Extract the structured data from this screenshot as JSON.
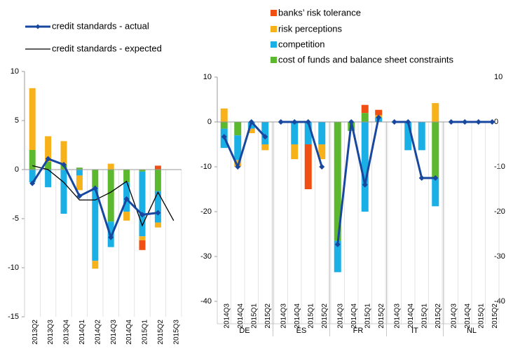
{
  "colors": {
    "banks_risk_tolerance": "#f04e13",
    "risk_perceptions": "#f7b11a",
    "competition": "#1ab0e6",
    "cost_of_funds": "#5cb82e",
    "actual_line": "#17479e",
    "expected_line": "#000000",
    "axis": "#999999",
    "text": "#000000"
  },
  "legend_left": [
    {
      "label": "credit standards - actual",
      "key": "actual"
    },
    {
      "label": "credit standards - expected",
      "key": "expected"
    }
  ],
  "legend_right": [
    {
      "label": "banks’ risk tolerance",
      "key": "banks_risk_tolerance"
    },
    {
      "label": "risk perceptions",
      "key": "risk_perceptions"
    },
    {
      "label": "competition",
      "key": "competition"
    },
    {
      "label": "cost of funds and balance sheet constraints",
      "key": "cost_of_funds"
    }
  ],
  "chart_data": [
    {
      "type": "bar",
      "stacked": true,
      "ylim": [
        -15,
        10
      ],
      "yticks": [
        10,
        5,
        0,
        -5,
        -10,
        -15
      ],
      "categories": [
        "2013Q2",
        "2013Q3",
        "2013Q4",
        "2014Q1",
        "2014Q2",
        "2014Q3",
        "2014Q4",
        "2015Q1",
        "2015Q2",
        "2015Q3"
      ],
      "series": [
        {
          "name": "cost of funds and balance sheet constraints",
          "key": "cost_of_funds",
          "values": [
            2.0,
            0.8,
            0.5,
            0.2,
            -1.8,
            -5.3,
            -1.3,
            -0.2,
            -2.2,
            null
          ]
        },
        {
          "name": "competition",
          "key": "competition",
          "values": [
            -1.3,
            -1.8,
            -4.5,
            -0.6,
            -7.5,
            -2.6,
            -3.0,
            -6.6,
            -3.2,
            null
          ]
        },
        {
          "name": "risk perceptions",
          "key": "risk_perceptions",
          "values": [
            6.3,
            2.6,
            2.4,
            -1.5,
            -0.8,
            0.6,
            -0.9,
            -0.4,
            -0.5,
            null
          ]
        },
        {
          "name": "banks’ risk tolerance",
          "key": "banks_risk_tolerance",
          "values": [
            0.0,
            0.0,
            0.0,
            0.0,
            0.0,
            0.0,
            0.0,
            -1.0,
            0.4,
            null
          ]
        }
      ],
      "lines": [
        {
          "name": "credit standards - actual",
          "key": "actual",
          "values": [
            -1.4,
            1.1,
            0.5,
            -2.7,
            -1.9,
            -6.9,
            -3.0,
            -4.6,
            -4.4,
            null
          ]
        },
        {
          "name": "credit standards - expected",
          "key": "expected",
          "values": [
            0.4,
            0.0,
            -1.3,
            -3.1,
            -3.1,
            -2.3,
            -1.2,
            -5.7,
            -2.3,
            -5.2
          ]
        }
      ]
    },
    {
      "type": "bar",
      "stacked": true,
      "ylim": [
        -40,
        10
      ],
      "yticks": [
        10,
        0,
        -10,
        -20,
        -30,
        -40
      ],
      "groups": [
        {
          "label": "DE",
          "quarters": [
            "2014Q3",
            "2014Q4",
            "2015Q1",
            "2015Q2"
          ],
          "bars": [
            {
              "cost_of_funds": -1.5,
              "competition": -4.3,
              "risk_perceptions": 3.0,
              "banks_risk_tolerance": 0
            },
            {
              "cost_of_funds": -3.0,
              "competition": -5.5,
              "risk_perceptions": -1.5,
              "banks_risk_tolerance": 0
            },
            {
              "cost_of_funds": 0,
              "competition": -1.5,
              "risk_perceptions": -1.0,
              "banks_risk_tolerance": 0
            },
            {
              "cost_of_funds": 0,
              "competition": -5.0,
              "risk_perceptions": -1.3,
              "banks_risk_tolerance": 0
            }
          ],
          "actual": [
            -3.3,
            -10.0,
            0.0,
            -3.3
          ]
        },
        {
          "label": "ES",
          "quarters": [
            "2014Q3",
            "2014Q4",
            "2015Q1",
            "2015Q2"
          ],
          "bars": [
            {
              "cost_of_funds": 0,
              "competition": 0,
              "risk_perceptions": 0,
              "banks_risk_tolerance": 0
            },
            {
              "cost_of_funds": 0,
              "competition": -5.0,
              "risk_perceptions": -3.3,
              "banks_risk_tolerance": 0
            },
            {
              "cost_of_funds": 0,
              "competition": -5.0,
              "risk_perceptions": 0,
              "banks_risk_tolerance": -10.0
            },
            {
              "cost_of_funds": 0,
              "competition": -5.0,
              "risk_perceptions": -3.3,
              "banks_risk_tolerance": 0
            }
          ],
          "actual": [
            0.0,
            0.0,
            0.0,
            -10.0
          ]
        },
        {
          "label": "FR",
          "quarters": [
            "2014Q3",
            "2014Q4",
            "2015Q1",
            "2015Q2"
          ],
          "bars": [
            {
              "cost_of_funds": -26.5,
              "competition": -7.0,
              "risk_perceptions": 0,
              "banks_risk_tolerance": 0
            },
            {
              "cost_of_funds": -2.0,
              "competition": 0,
              "risk_perceptions": 0,
              "banks_risk_tolerance": 0
            },
            {
              "cost_of_funds": 2.0,
              "competition": -20.0,
              "risk_perceptions": 0,
              "banks_risk_tolerance": 1.8
            },
            {
              "cost_of_funds": 0,
              "competition": 1.0,
              "risk_perceptions": 0.5,
              "banks_risk_tolerance": 1.2
            }
          ],
          "actual": [
            -27.3,
            0.0,
            -14.0,
            1.0
          ]
        },
        {
          "label": "IT",
          "quarters": [
            "2014Q3",
            "2014Q4",
            "2015Q1",
            "2015Q2"
          ],
          "bars": [
            {
              "cost_of_funds": 0,
              "competition": 0,
              "risk_perceptions": 0,
              "banks_risk_tolerance": 0
            },
            {
              "cost_of_funds": 0,
              "competition": -6.3,
              "risk_perceptions": 0,
              "banks_risk_tolerance": 0
            },
            {
              "cost_of_funds": 0,
              "competition": -6.3,
              "risk_perceptions": 0,
              "banks_risk_tolerance": 0
            },
            {
              "cost_of_funds": -12.5,
              "competition": -6.3,
              "risk_perceptions": 4.2,
              "banks_risk_tolerance": 0
            }
          ],
          "actual": [
            0.0,
            0.0,
            -12.5,
            -12.5
          ]
        },
        {
          "label": "NL",
          "quarters": [
            "2014Q3",
            "2014Q4",
            "2015Q1",
            "2015Q2"
          ],
          "bars": [
            {
              "cost_of_funds": 0,
              "competition": 0,
              "risk_perceptions": 0,
              "banks_risk_tolerance": 0
            },
            {
              "cost_of_funds": 0,
              "competition": 0,
              "risk_perceptions": 0,
              "banks_risk_tolerance": 0
            },
            {
              "cost_of_funds": 0,
              "competition": 0,
              "risk_perceptions": 0,
              "banks_risk_tolerance": 0
            },
            {
              "cost_of_funds": 0,
              "competition": 0,
              "risk_perceptions": 0,
              "banks_risk_tolerance": 0
            }
          ],
          "actual": [
            0.0,
            0.0,
            0.0,
            0.0
          ]
        }
      ],
      "right_axis_ticks": [
        "10",
        "0",
        "-10",
        "-20",
        "-30",
        "-40"
      ]
    }
  ]
}
